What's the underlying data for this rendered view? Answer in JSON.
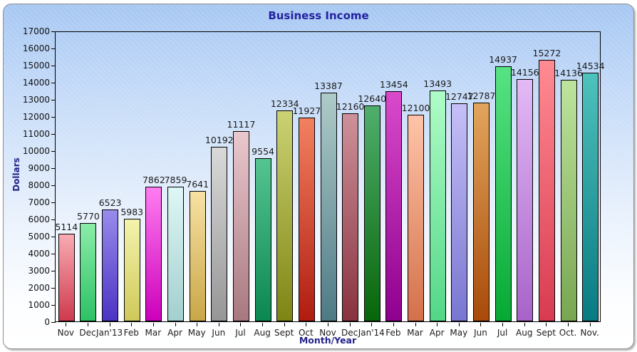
{
  "chart_data": {
    "type": "bar",
    "title": "Business Income",
    "xlabel": "Month/Year",
    "ylabel": "Dollars",
    "ylim": [
      0,
      17000
    ],
    "ytick_step": 1000,
    "grid": false,
    "legend": "none",
    "categories": [
      "Nov",
      "Dec",
      "Jan'13",
      "Feb",
      "Mar",
      "Apr",
      "May",
      "Jun",
      "Jul",
      "Aug",
      "Sept",
      "Oct",
      "Nov",
      "Dec",
      "Jan'14",
      "Feb",
      "Mar",
      "Apr",
      "May",
      "Jun",
      "Jul",
      "Aug",
      "Sept",
      "Oct.",
      "Nov."
    ],
    "values": [
      5114,
      5770,
      6523,
      5983,
      7862,
      7859,
      7641,
      10192,
      11117,
      9554,
      12334,
      11927,
      13387,
      12160,
      12640,
      13454,
      12100,
      13493,
      12747,
      12787,
      14937,
      14156,
      15272,
      14136,
      14534
    ],
    "bar_gradients": [
      {
        "top": "#f9abb3",
        "bottom": "#ce3a4e"
      },
      {
        "top": "#8beda8",
        "bottom": "#2dc165"
      },
      {
        "top": "#988bec",
        "bottom": "#4b33c4"
      },
      {
        "top": "#f3f3ac",
        "bottom": "#cfc95a"
      },
      {
        "top": "#ff7df0",
        "bottom": "#cc00bb"
      },
      {
        "top": "#def7f5",
        "bottom": "#a3cfce"
      },
      {
        "top": "#f7e1a4",
        "bottom": "#c9a748"
      },
      {
        "top": "#d9d9d9",
        "bottom": "#969696"
      },
      {
        "top": "#e9c8cd",
        "bottom": "#a87880"
      },
      {
        "top": "#55c491",
        "bottom": "#0b8751"
      },
      {
        "top": "#cbd273",
        "bottom": "#7f8513"
      },
      {
        "top": "#f28160",
        "bottom": "#b01c10"
      },
      {
        "top": "#aecbc8",
        "bottom": "#4e7a86"
      },
      {
        "top": "#ce9199",
        "bottom": "#88333f"
      },
      {
        "top": "#4fae6c",
        "bottom": "#076609"
      },
      {
        "top": "#d94acb",
        "bottom": "#8e008e"
      },
      {
        "top": "#ffc4a9",
        "bottom": "#d3714a"
      },
      {
        "top": "#affcc7",
        "bottom": "#54d787"
      },
      {
        "top": "#c6bff7",
        "bottom": "#7876d1"
      },
      {
        "top": "#e2a55d",
        "bottom": "#a84a09"
      },
      {
        "top": "#57e384",
        "bottom": "#06a934"
      },
      {
        "top": "#e3baf5",
        "bottom": "#a763c9"
      },
      {
        "top": "#ff8b93",
        "bottom": "#d83b51"
      },
      {
        "top": "#bee39e",
        "bottom": "#78a651"
      },
      {
        "top": "#4ec2bc",
        "bottom": "#087a82"
      }
    ],
    "colors": {
      "title": "#2323a0",
      "axis_titles": "#22228b",
      "tick_labels": "#111111",
      "value_labels": "#1a1a1a",
      "axis_line": "#000000",
      "panel_bg_top": "#a6c7f2",
      "panel_bg_bottom": "#ffffff",
      "panel_border": "#8f8f8f"
    }
  }
}
